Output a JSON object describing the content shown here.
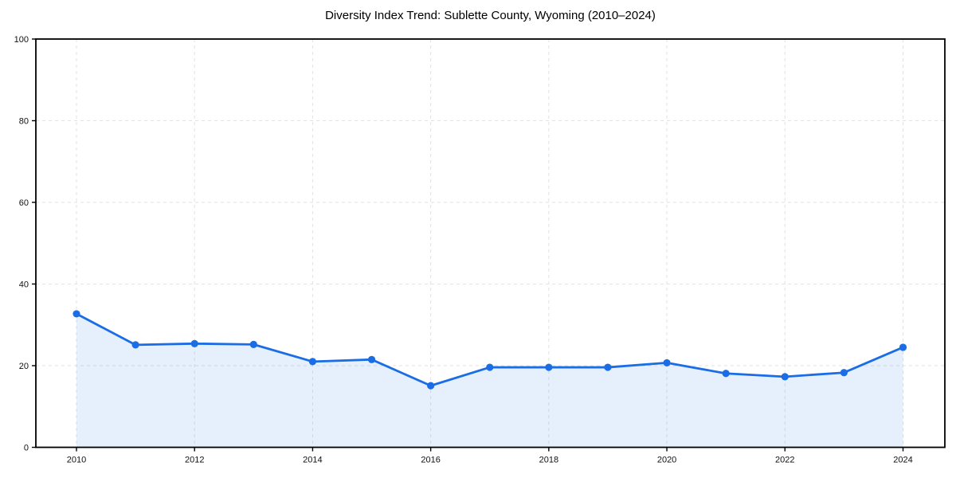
{
  "chart_data": {
    "type": "line",
    "title": "Diversity Index Trend: Sublette County, Wyoming (2010–2024)",
    "x": [
      2010,
      2011,
      2012,
      2013,
      2014,
      2015,
      2016,
      2017,
      2018,
      2019,
      2020,
      2021,
      2022,
      2023,
      2024
    ],
    "series": [
      {
        "name": "Diversity Index",
        "values": [
          32.7,
          25.1,
          25.4,
          25.2,
          21.0,
          21.5,
          15.1,
          19.6,
          19.6,
          19.6,
          20.7,
          18.1,
          17.3,
          18.3,
          24.5
        ]
      }
    ],
    "area_fill": true,
    "markers": true,
    "xlabel": "",
    "ylabel": "",
    "ylim": [
      0,
      100
    ],
    "yticks": [
      0,
      20,
      40,
      60,
      80,
      100
    ],
    "xticks": [
      2010,
      2012,
      2014,
      2016,
      2018,
      2020,
      2022,
      2024
    ],
    "grid": "dashed",
    "legend": "none",
    "colors": {
      "line": "#1a6de4",
      "marker": "#1a6de4",
      "area": "rgba(26,109,228,0.11)",
      "grid": "#e2e2e2",
      "axis": "#000000",
      "text": "#111111",
      "background": "#ffffff"
    }
  }
}
